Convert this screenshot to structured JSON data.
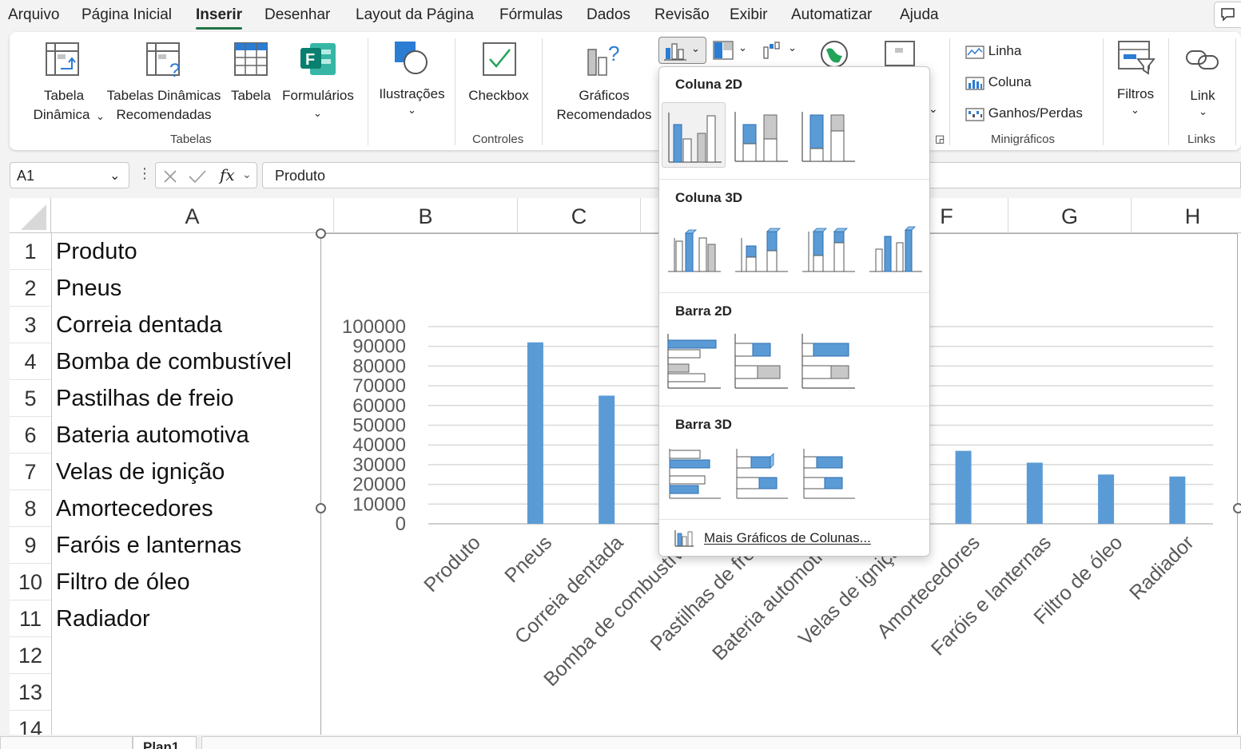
{
  "menu": {
    "tabs": [
      "Arquivo",
      "Página Inicial",
      "Inserir",
      "Desenhar",
      "Layout da Página",
      "Fórmulas",
      "Dados",
      "Revisão",
      "Exibir",
      "Automatizar",
      "Ajuda"
    ],
    "active": "Inserir"
  },
  "ribbon": {
    "pivot_table": [
      "Tabela",
      "Dinâmica"
    ],
    "rec_pivot": [
      "Tabelas Dinâmicas",
      "Recomendadas"
    ],
    "table": "Tabela",
    "forms": "Formulários",
    "group_tables": "Tabelas",
    "illustrations": "Ilustrações",
    "checkbox": "Checkbox",
    "group_controls": "Controles",
    "rec_charts": [
      "Gráficos",
      "Recomendados"
    ],
    "spark_line": "Linha",
    "spark_column": "Coluna",
    "spark_winloss": "Ganhos/Perdas",
    "group_sparklines": "Minigráficos",
    "filters": "Filtros",
    "link": "Link",
    "group_links": "Links"
  },
  "formula_bar": {
    "name_box": "A1",
    "fx": "fx",
    "value": "Produto"
  },
  "grid": {
    "columns": [
      "A",
      "B",
      "C",
      "F",
      "G",
      "H"
    ],
    "rows": [
      "1",
      "2",
      "3",
      "4",
      "5",
      "6",
      "7",
      "8",
      "9",
      "10",
      "11",
      "12",
      "13",
      "14"
    ],
    "cells_a": [
      "Produto",
      "Pneus",
      "Correia dentada",
      "Bomba de combustível",
      "Pastilhas de freio",
      "Bateria automotiva",
      "Velas de ignição",
      "Amortecedores",
      "Faróis e lanternas",
      "Filtro de óleo",
      "Radiador"
    ]
  },
  "chart_data": {
    "type": "bar",
    "categories": [
      "Produto",
      "Pneus",
      "Correia dentada",
      "Bomba de combustível",
      "Pastilhas de freio",
      "Bateria automotiva",
      "Velas de ignição",
      "Amortecedores",
      "Faróis e lanternas",
      "Filtro de óleo",
      "Radiador"
    ],
    "values": [
      0,
      92000,
      65000,
      null,
      null,
      null,
      null,
      37000,
      31000,
      25000,
      24000
    ],
    "ylim": [
      0,
      100000
    ],
    "yticks": [
      "100000",
      "90000",
      "80000",
      "70000",
      "60000",
      "50000",
      "40000",
      "30000",
      "20000",
      "10000",
      "0"
    ],
    "grid": true,
    "bar_color": "#5b9bd5",
    "title": "",
    "xlabel": "",
    "ylabel": ""
  },
  "dropdown": {
    "section_col2d": "Coluna 2D",
    "section_col3d": "Coluna 3D",
    "section_bar2d": "Barra 2D",
    "section_bar3d": "Barra 3D",
    "more": "Mais Gráficos de Colunas..."
  },
  "sheet": {
    "tab": "Plan1"
  },
  "colors": {
    "accent": "#217346",
    "bar": "#5b9bd5"
  }
}
